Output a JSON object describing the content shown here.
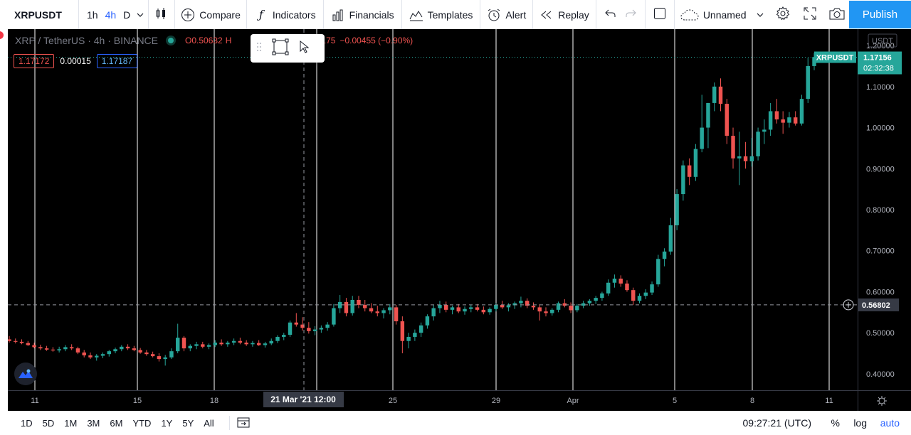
{
  "toolbar": {
    "symbol": "XRPUSDT",
    "timeframes": [
      "1h",
      "4h",
      "D"
    ],
    "active_timeframe": "4h",
    "compare_label": "Compare",
    "indicators_label": "Indicators",
    "financials_label": "Financials",
    "templates_label": "Templates",
    "alert_label": "Alert",
    "replay_label": "Replay",
    "layout_name": "Unnamed",
    "publish_label": "Publish"
  },
  "legend": {
    "title": "XRP / TetherUS · 4h · BINANCE",
    "open": "O0.50632",
    "high_label": "H",
    "close": "C0.50175",
    "change": "−0.00455 (−0.90%)",
    "sell_price": "1.17172",
    "spread": "0.00015",
    "buy_price": "1.17187"
  },
  "price_axis": {
    "currency": "USDT",
    "last_symbol": "XRPUSDT",
    "last_price": "1.17156",
    "countdown": "02:32:38",
    "crosshair_price": "0.56802",
    "ticks": [
      "1.20000",
      "1.10000",
      "1.00000",
      "0.90000",
      "0.80000",
      "0.70000",
      "0.60000",
      "0.50000",
      "0.40000"
    ]
  },
  "time_axis": {
    "labels": [
      "11",
      "15",
      "18",
      "25",
      "29",
      "Apr",
      "5",
      "8",
      "11"
    ],
    "crosshair_label": "21 Mar '21   12:00"
  },
  "bottombar": {
    "ranges": [
      "1D",
      "5D",
      "1M",
      "3M",
      "6M",
      "YTD",
      "1Y",
      "5Y",
      "All"
    ],
    "clock": "09:27:21 (UTC)",
    "percent_label": "%",
    "log_label": "log",
    "auto_label": "auto"
  },
  "colors": {
    "up": "#26a69a",
    "down": "#ef5350",
    "background": "#000000",
    "accent": "#2962ff"
  },
  "chart_data": {
    "type": "candlestick",
    "interval": "4h",
    "ylim": [
      0.36,
      1.24
    ],
    "candles": [
      [
        0.484,
        0.492,
        0.476,
        0.48
      ],
      [
        0.48,
        0.486,
        0.474,
        0.478
      ],
      [
        0.478,
        0.484,
        0.472,
        0.475
      ],
      [
        0.475,
        0.48,
        0.468,
        0.47
      ],
      [
        0.47,
        0.476,
        0.462,
        0.465
      ],
      [
        0.465,
        0.471,
        0.458,
        0.462
      ],
      [
        0.462,
        0.468,
        0.456,
        0.459
      ],
      [
        0.459,
        0.465,
        0.454,
        0.457
      ],
      [
        0.457,
        0.466,
        0.452,
        0.46
      ],
      [
        0.46,
        0.47,
        0.455,
        0.465
      ],
      [
        0.465,
        0.472,
        0.458,
        0.462
      ],
      [
        0.462,
        0.466,
        0.448,
        0.452
      ],
      [
        0.452,
        0.458,
        0.44,
        0.445
      ],
      [
        0.445,
        0.452,
        0.436,
        0.44
      ],
      [
        0.44,
        0.448,
        0.432,
        0.444
      ],
      [
        0.444,
        0.452,
        0.438,
        0.448
      ],
      [
        0.448,
        0.458,
        0.442,
        0.455
      ],
      [
        0.455,
        0.464,
        0.45,
        0.46
      ],
      [
        0.46,
        0.47,
        0.455,
        0.466
      ],
      [
        0.466,
        0.472,
        0.458,
        0.462
      ],
      [
        0.462,
        0.468,
        0.455,
        0.458
      ],
      [
        0.458,
        0.463,
        0.449,
        0.452
      ],
      [
        0.452,
        0.458,
        0.444,
        0.448
      ],
      [
        0.448,
        0.454,
        0.44,
        0.443
      ],
      [
        0.443,
        0.45,
        0.43,
        0.436
      ],
      [
        0.436,
        0.446,
        0.42,
        0.44
      ],
      [
        0.44,
        0.462,
        0.436,
        0.455
      ],
      [
        0.455,
        0.522,
        0.45,
        0.488
      ],
      [
        0.488,
        0.492,
        0.455,
        0.462
      ],
      [
        0.462,
        0.472,
        0.455,
        0.468
      ],
      [
        0.468,
        0.478,
        0.46,
        0.472
      ],
      [
        0.472,
        0.478,
        0.462,
        0.466
      ],
      [
        0.466,
        0.474,
        0.46,
        0.47
      ],
      [
        0.47,
        0.482,
        0.465,
        0.476
      ],
      [
        0.476,
        0.484,
        0.468,
        0.472
      ],
      [
        0.472,
        0.48,
        0.466,
        0.476
      ],
      [
        0.476,
        0.486,
        0.47,
        0.48
      ],
      [
        0.48,
        0.488,
        0.472,
        0.476
      ],
      [
        0.476,
        0.482,
        0.468,
        0.472
      ],
      [
        0.472,
        0.48,
        0.466,
        0.475
      ],
      [
        0.475,
        0.482,
        0.468,
        0.47
      ],
      [
        0.47,
        0.478,
        0.464,
        0.474
      ],
      [
        0.474,
        0.486,
        0.47,
        0.48
      ],
      [
        0.48,
        0.494,
        0.475,
        0.49
      ],
      [
        0.49,
        0.5,
        0.482,
        0.495
      ],
      [
        0.495,
        0.53,
        0.49,
        0.525
      ],
      [
        0.525,
        0.548,
        0.515,
        0.52
      ],
      [
        0.52,
        0.538,
        0.505,
        0.512
      ],
      [
        0.512,
        0.526,
        0.498,
        0.504
      ],
      [
        0.504,
        0.516,
        0.494,
        0.508
      ],
      [
        0.508,
        0.518,
        0.5,
        0.512
      ],
      [
        0.512,
        0.526,
        0.505,
        0.52
      ],
      [
        0.52,
        0.57,
        0.515,
        0.56
      ],
      [
        0.56,
        0.592,
        0.548,
        0.575
      ],
      [
        0.575,
        0.585,
        0.54,
        0.548
      ],
      [
        0.548,
        0.59,
        0.542,
        0.58
      ],
      [
        0.58,
        0.59,
        0.56,
        0.568
      ],
      [
        0.568,
        0.58,
        0.552,
        0.56
      ],
      [
        0.56,
        0.572,
        0.548,
        0.552
      ],
      [
        0.552,
        0.566,
        0.54,
        0.548
      ],
      [
        0.548,
        0.56,
        0.535,
        0.555
      ],
      [
        0.555,
        0.57,
        0.545,
        0.562
      ],
      [
        0.562,
        0.568,
        0.52,
        0.528
      ],
      [
        0.528,
        0.54,
        0.45,
        0.48
      ],
      [
        0.48,
        0.5,
        0.462,
        0.49
      ],
      [
        0.49,
        0.508,
        0.48,
        0.5
      ],
      [
        0.5,
        0.525,
        0.49,
        0.518
      ],
      [
        0.518,
        0.545,
        0.51,
        0.54
      ],
      [
        0.54,
        0.568,
        0.53,
        0.56
      ],
      [
        0.56,
        0.578,
        0.548,
        0.568
      ],
      [
        0.568,
        0.576,
        0.55,
        0.556
      ],
      [
        0.556,
        0.566,
        0.545,
        0.562
      ],
      [
        0.562,
        0.57,
        0.548,
        0.552
      ],
      [
        0.552,
        0.564,
        0.544,
        0.558
      ],
      [
        0.558,
        0.568,
        0.55,
        0.562
      ],
      [
        0.562,
        0.57,
        0.552,
        0.556
      ],
      [
        0.556,
        0.564,
        0.545,
        0.55
      ],
      [
        0.55,
        0.562,
        0.544,
        0.558
      ],
      [
        0.558,
        0.572,
        0.552,
        0.568
      ],
      [
        0.568,
        0.578,
        0.558,
        0.562
      ],
      [
        0.562,
        0.572,
        0.552,
        0.567
      ],
      [
        0.567,
        0.576,
        0.558,
        0.572
      ],
      [
        0.572,
        0.588,
        0.562,
        0.578
      ],
      [
        0.578,
        0.584,
        0.56,
        0.566
      ],
      [
        0.566,
        0.574,
        0.556,
        0.562
      ],
      [
        0.562,
        0.57,
        0.53,
        0.552
      ],
      [
        0.552,
        0.562,
        0.54,
        0.548
      ],
      [
        0.548,
        0.56,
        0.542,
        0.556
      ],
      [
        0.556,
        0.576,
        0.55,
        0.572
      ],
      [
        0.572,
        0.582,
        0.562,
        0.566
      ],
      [
        0.566,
        0.574,
        0.548,
        0.555
      ],
      [
        0.555,
        0.57,
        0.55,
        0.566
      ],
      [
        0.566,
        0.578,
        0.56,
        0.572
      ],
      [
        0.572,
        0.582,
        0.566,
        0.578
      ],
      [
        0.578,
        0.59,
        0.57,
        0.585
      ],
      [
        0.585,
        0.6,
        0.578,
        0.596
      ],
      [
        0.596,
        0.63,
        0.59,
        0.622
      ],
      [
        0.622,
        0.642,
        0.61,
        0.632
      ],
      [
        0.632,
        0.64,
        0.612,
        0.62
      ],
      [
        0.62,
        0.628,
        0.6,
        0.604
      ],
      [
        0.604,
        0.61,
        0.568,
        0.578
      ],
      [
        0.578,
        0.596,
        0.572,
        0.59
      ],
      [
        0.59,
        0.606,
        0.582,
        0.598
      ],
      [
        0.598,
        0.625,
        0.592,
        0.618
      ],
      [
        0.618,
        0.69,
        0.612,
        0.68
      ],
      [
        0.68,
        0.706,
        0.662,
        0.698
      ],
      [
        0.698,
        0.78,
        0.69,
        0.762
      ],
      [
        0.762,
        0.85,
        0.75,
        0.838
      ],
      [
        0.838,
        0.92,
        0.822,
        0.908
      ],
      [
        0.908,
        0.925,
        0.86,
        0.88
      ],
      [
        0.88,
        0.96,
        0.87,
        0.948
      ],
      [
        0.948,
        1.08,
        0.94,
        1.0
      ],
      [
        1.0,
        1.06,
        0.95,
        1.06
      ],
      [
        1.06,
        1.11,
        1.04,
        1.1
      ],
      [
        1.1,
        1.12,
        1.04,
        1.058
      ],
      [
        1.058,
        1.07,
        0.96,
        0.98
      ],
      [
        0.98,
        1.0,
        0.9,
        0.925
      ],
      [
        0.925,
        0.99,
        0.86,
        0.93
      ],
      [
        0.93,
        0.965,
        0.9,
        0.918
      ],
      [
        0.918,
        0.975,
        0.905,
        0.93
      ],
      [
        0.93,
        1.0,
        0.92,
        0.99
      ],
      [
        0.99,
        1.02,
        0.96,
        0.995
      ],
      [
        0.995,
        1.06,
        0.98,
        1.04
      ],
      [
        1.04,
        1.07,
        1.01,
        1.02
      ],
      [
        1.02,
        1.04,
        0.985,
        1.012
      ],
      [
        1.012,
        1.038,
        1.0,
        1.025
      ],
      [
        1.025,
        1.04,
        1.005,
        1.01
      ],
      [
        1.01,
        1.08,
        1.005,
        1.07
      ],
      [
        1.07,
        1.17,
        1.06,
        1.15
      ],
      [
        1.15,
        1.182,
        1.14,
        1.172
      ]
    ]
  }
}
